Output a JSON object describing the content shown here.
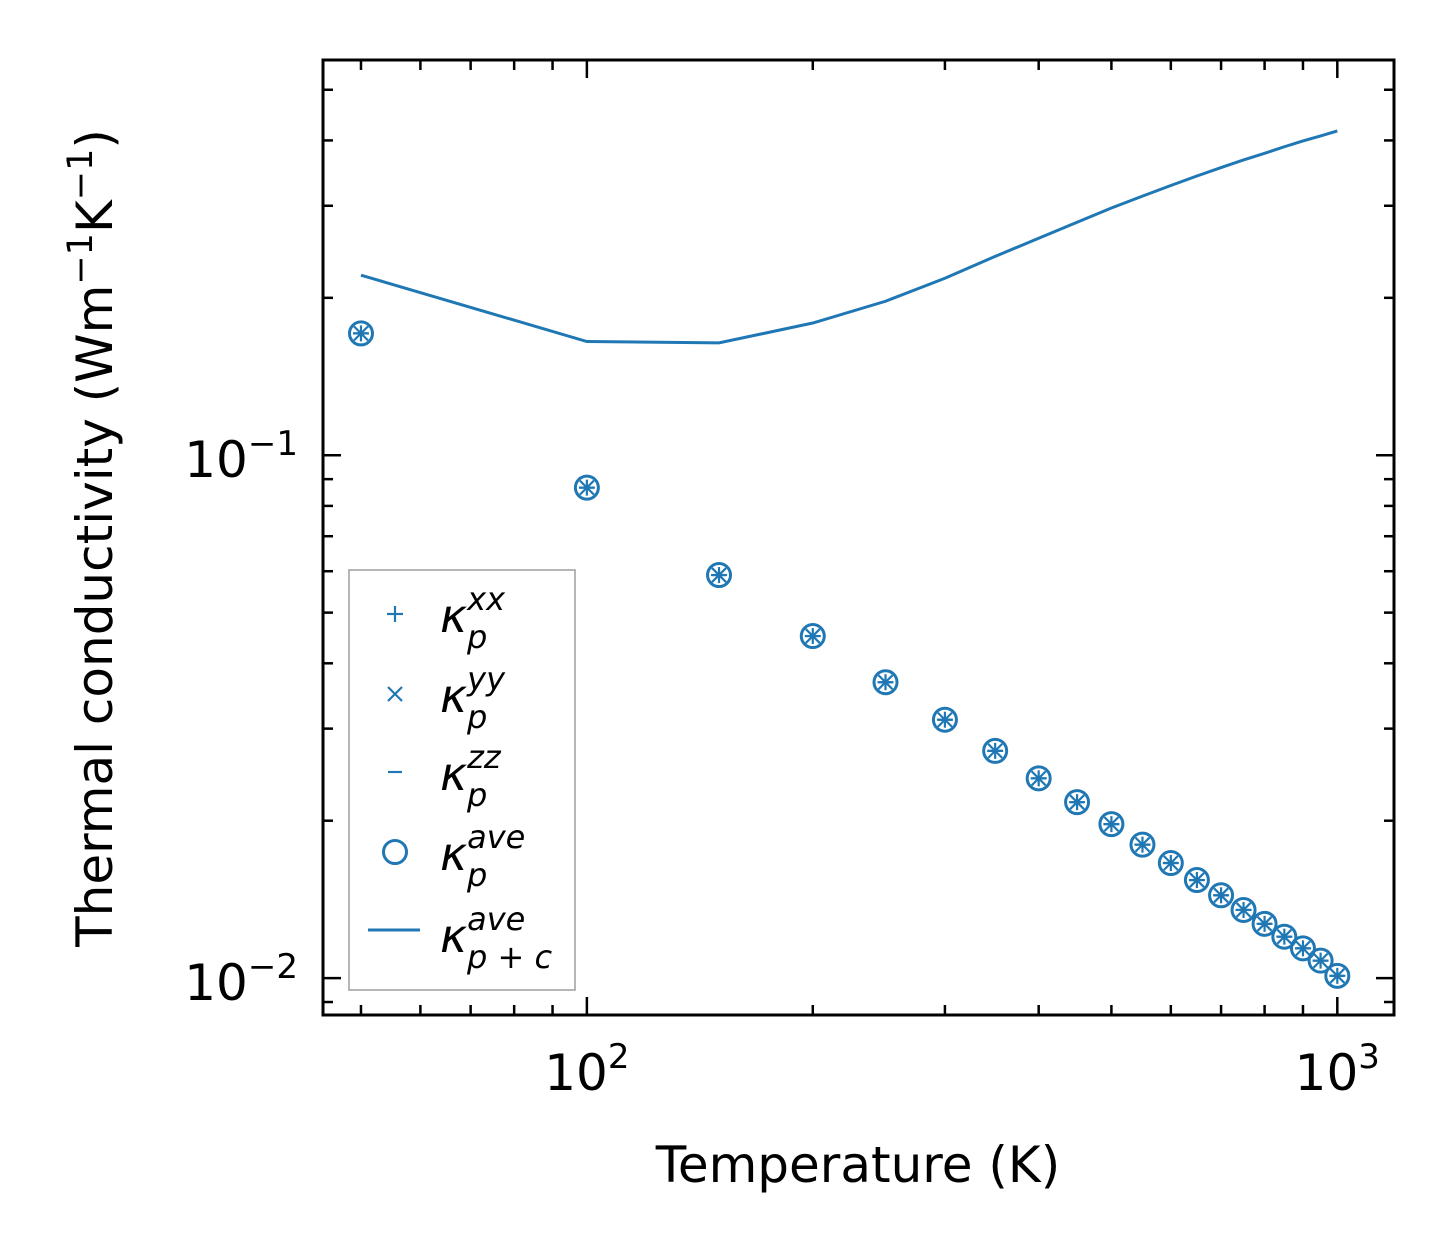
{
  "colors": {
    "series": "#1f77b4",
    "axis": "#000000",
    "legend_border": "#9e9e9e",
    "background": "#ffffff"
  },
  "chart_data": {
    "type": "scatter",
    "xscale": "log",
    "yscale": "log",
    "xlabel": "Temperature (K)",
    "ylabel": "Thermal conductivity (Wm",
    "ylabel_exp1": "−1",
    "ylabel_mid": "K",
    "ylabel_exp2": "−1",
    "ylabel_end": ")",
    "xlim": [
      44.5,
      1190
    ],
    "ylim": [
      0.0085,
      0.57
    ],
    "x_ticks": [
      {
        "value": 100,
        "base": "10",
        "exp": "2"
      },
      {
        "value": 1000,
        "base": "10",
        "exp": "3"
      }
    ],
    "y_ticks": [
      {
        "value": 0.01,
        "base": "10",
        "exp": "−2"
      },
      {
        "value": 0.1,
        "base": "10",
        "exp": "−1"
      }
    ],
    "x": [
      50,
      100,
      150,
      200,
      250,
      300,
      350,
      400,
      450,
      500,
      550,
      600,
      650,
      700,
      750,
      800,
      850,
      900,
      950,
      1000
    ],
    "series": [
      {
        "name": "κ_p^xx",
        "marker": "plus",
        "values": [
          0.171,
          0.0867,
          0.059,
          0.0451,
          0.0368,
          0.0312,
          0.0272,
          0.0241,
          0.0217,
          0.0197,
          0.018,
          0.0166,
          0.0154,
          0.0144,
          0.0135,
          0.0127,
          0.012,
          0.0114,
          0.0108,
          0.0101
        ]
      },
      {
        "name": "κ_p^yy",
        "marker": "x",
        "values": [
          0.171,
          0.0867,
          0.059,
          0.0451,
          0.0368,
          0.0312,
          0.0272,
          0.0241,
          0.0217,
          0.0197,
          0.018,
          0.0166,
          0.0154,
          0.0144,
          0.0135,
          0.0127,
          0.012,
          0.0114,
          0.0108,
          0.0101
        ]
      },
      {
        "name": "κ_p^zz",
        "marker": "hline",
        "values": [
          0.171,
          0.0867,
          0.059,
          0.0451,
          0.0368,
          0.0312,
          0.0272,
          0.0241,
          0.0217,
          0.0197,
          0.018,
          0.0166,
          0.0154,
          0.0144,
          0.0135,
          0.0127,
          0.012,
          0.0114,
          0.0108,
          0.0101
        ]
      },
      {
        "name": "κ_p^ave",
        "marker": "circle",
        "values": [
          0.171,
          0.0867,
          0.059,
          0.0451,
          0.0368,
          0.0312,
          0.0272,
          0.0241,
          0.0217,
          0.0197,
          0.018,
          0.0166,
          0.0154,
          0.0144,
          0.0135,
          0.0127,
          0.012,
          0.0114,
          0.0108,
          0.0101
        ]
      },
      {
        "name": "κ_p+c^ave",
        "marker": "line",
        "x": [
          50,
          100,
          150,
          200,
          250,
          300,
          350,
          400,
          450,
          500,
          550,
          600,
          650,
          700,
          750,
          800,
          850,
          900,
          950,
          1000
        ],
        "values": [
          0.221,
          0.165,
          0.164,
          0.179,
          0.197,
          0.218,
          0.24,
          0.26,
          0.279,
          0.297,
          0.313,
          0.328,
          0.342,
          0.355,
          0.367,
          0.378,
          0.389,
          0.399,
          0.408,
          0.417
        ]
      }
    ],
    "legend": {
      "position": "lower-left",
      "entries": [
        {
          "sym": "κ",
          "sub": "p",
          "sup": "xx",
          "marker": "plus"
        },
        {
          "sym": "κ",
          "sub": "p",
          "sup": "yy",
          "marker": "x"
        },
        {
          "sym": "κ",
          "sub": "p",
          "sup": "zz",
          "marker": "hline"
        },
        {
          "sym": "κ",
          "sub": "p",
          "sup": "ave",
          "marker": "circle"
        },
        {
          "sym": "κ",
          "sub": "p + c",
          "sup": "ave",
          "marker": "line"
        }
      ]
    }
  }
}
